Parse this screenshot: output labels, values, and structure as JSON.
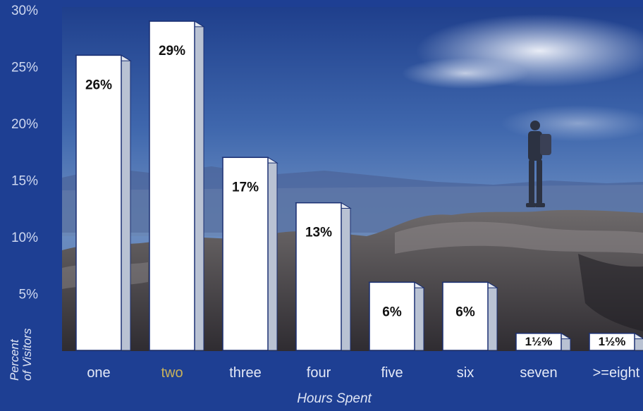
{
  "chart_data": {
    "type": "bar",
    "categories": [
      "one",
      "two",
      "three",
      "four",
      "five",
      "six",
      "seven",
      ">=eight"
    ],
    "values": [
      26,
      29,
      17,
      13,
      6,
      6,
      1.5,
      1.5
    ],
    "data_labels": [
      "26%",
      "29%",
      "17%",
      "13%",
      "6%",
      "6%",
      "1½%",
      "1½%"
    ],
    "highlighted_category": "two",
    "xlabel": "Hours Spent",
    "ylabel": "Percent of Visitors",
    "ylabel_lines": [
      "Percent",
      "of Visitors"
    ],
    "ylim": [
      0,
      30
    ],
    "yticks": [
      5,
      10,
      15,
      20,
      25,
      30
    ],
    "ytick_labels": [
      "5%",
      "10%",
      "15%",
      "20%",
      "25%",
      "30%"
    ],
    "grid": false,
    "legend": "none",
    "style": "3d-bars-over-mountain-photo"
  },
  "colors": {
    "frame_background": "#1e3f93",
    "tick_text": "#cfd8f0",
    "category_text": "#e4e9f7",
    "highlight_text": "#c9b25a",
    "axis_title_text": "#dfe5f5",
    "bar_face": "#ffffff",
    "bar_top": "#e2e7ef",
    "bar_side": "#b9c2d3",
    "bar_outline": "#1a2f72",
    "bar_label": "#111111"
  }
}
